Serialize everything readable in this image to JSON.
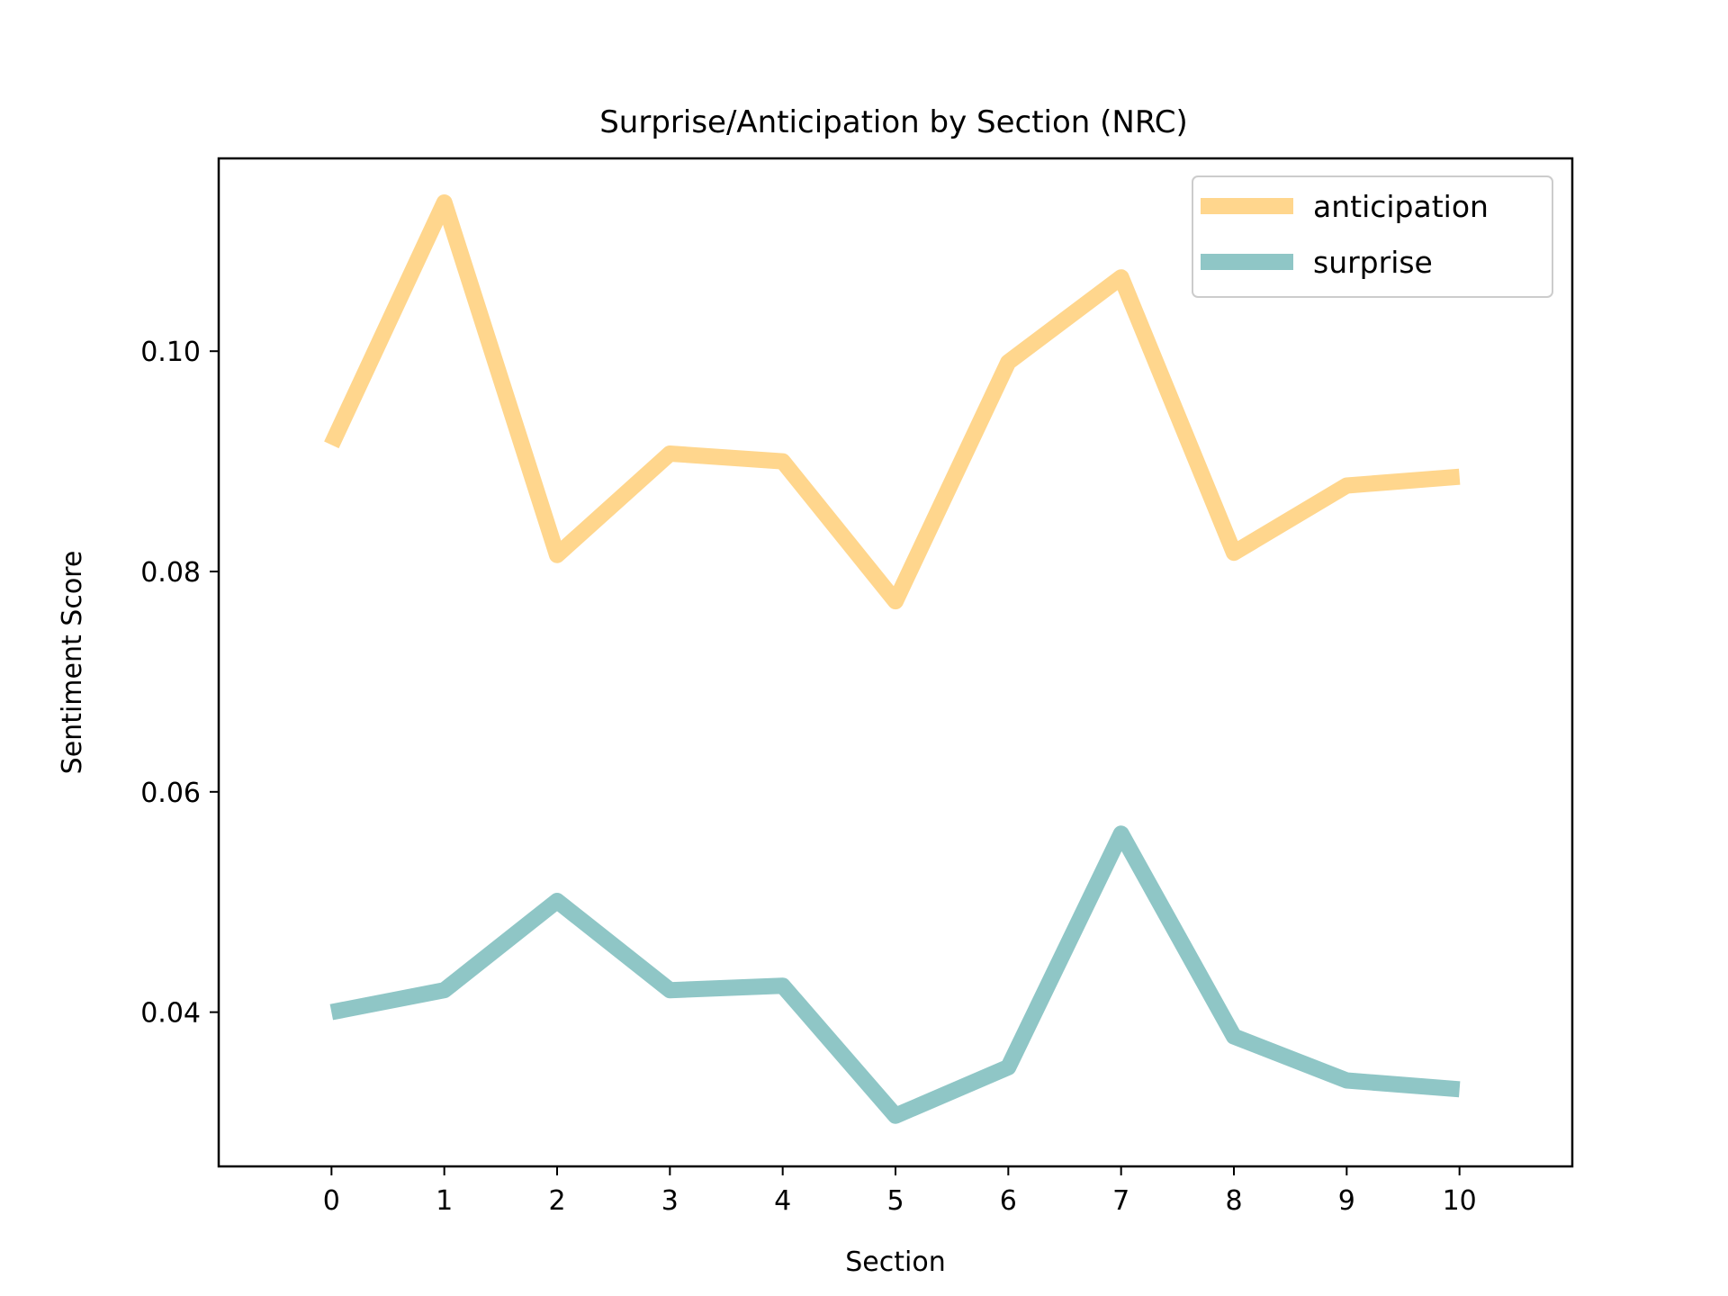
{
  "chart_data": {
    "type": "line",
    "title": "Surprise/Anticipation by Section (NRC)",
    "xlabel": "Section",
    "ylabel": "Sentiment Score",
    "x": [
      0,
      1,
      2,
      3,
      4,
      5,
      6,
      7,
      8,
      9,
      10
    ],
    "x_ticks": [
      "0",
      "1",
      "2",
      "3",
      "4",
      "5",
      "6",
      "7",
      "8",
      "9",
      "10"
    ],
    "y_ticks": [
      "0.04",
      "0.06",
      "0.08",
      "0.10"
    ],
    "xlim": [
      -1,
      11
    ],
    "ylim": [
      0.026,
      0.1175
    ],
    "grid": false,
    "legend_position": "top-right",
    "series": [
      {
        "name": "anticipation",
        "color": "#ffd68d",
        "values": [
          0.0915,
          0.1135,
          0.0815,
          0.0907,
          0.09,
          0.0773,
          0.099,
          0.1067,
          0.0817,
          0.0878,
          0.0886
        ]
      },
      {
        "name": "surprise",
        "color": "#8fc6c6",
        "values": [
          0.04,
          0.042,
          0.0501,
          0.042,
          0.0424,
          0.0306,
          0.035,
          0.0562,
          0.0378,
          0.0338,
          0.033
        ]
      }
    ]
  }
}
